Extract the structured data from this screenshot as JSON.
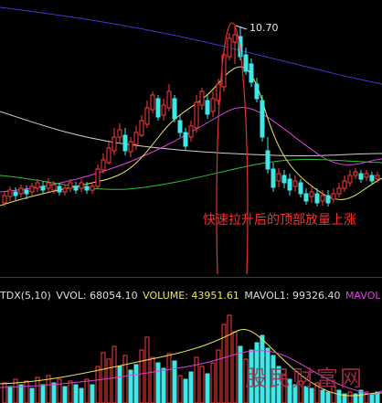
{
  "price_chart": {
    "peak_label": "10.70",
    "annotation": "快速拉升后的顶部放量上涨",
    "colors": {
      "up": "#ff3c3c",
      "down": "#3ee8e8",
      "ma_blue": "#3a3ad8",
      "ma_white": "#cfcfcf",
      "ma_yellow": "#e8e860",
      "ma_magenta": "#e040e0",
      "ma_green": "#30c030",
      "ellipse": "#e03030"
    }
  },
  "volume_info": {
    "indicator": "TDX(5,10)",
    "vvol_label": "VVOL: 68054.10",
    "volume_label": "VOLUME: 43951.61",
    "mavol1_label": "MAVOL1: 99326.40",
    "mavol2_label": "MAVOL"
  },
  "chart_data": {
    "type": "candlestick",
    "peak_price": 10.7,
    "annotation": "快速拉升后的顶部放量上涨",
    "volume_indicator": "TDX(5,10)",
    "vvol": 68054.1,
    "volume": 43951.61,
    "mavol1": 99326.4,
    "series_legend": [
      "VOLUME",
      "MAVOL1",
      "MAVOL"
    ]
  },
  "watermark": "股民财富网"
}
